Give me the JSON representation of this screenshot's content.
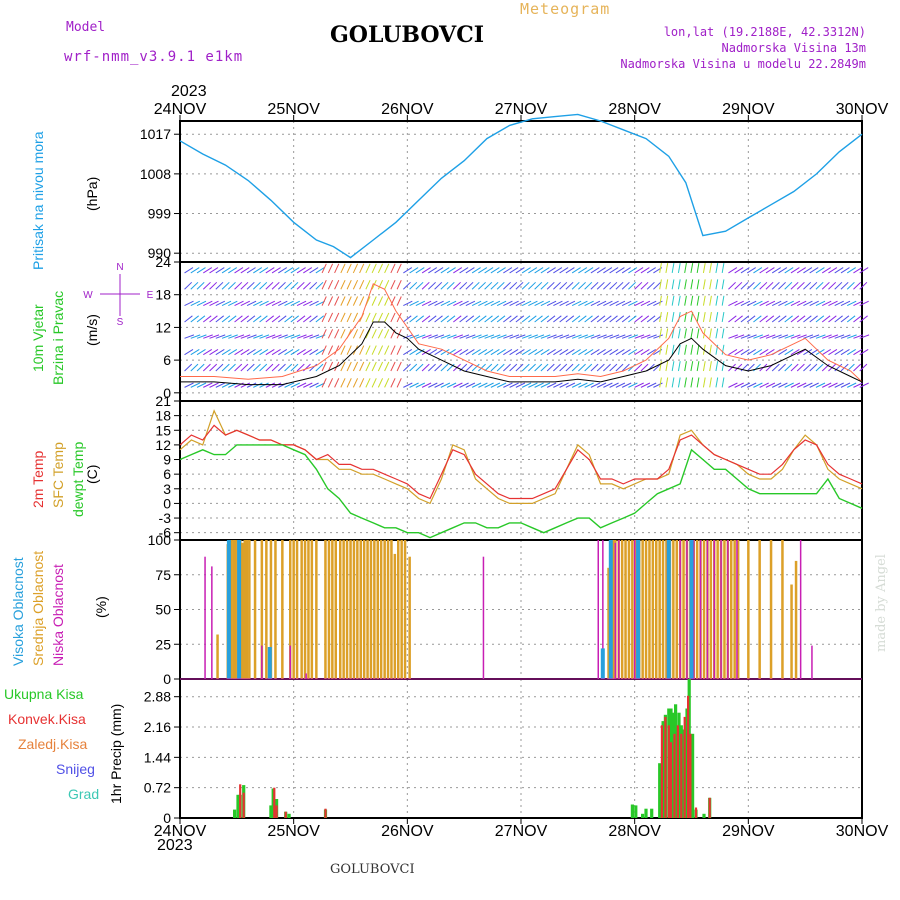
{
  "header": {
    "model_label": "Model",
    "model_name": "wrf-nmm_v3.9.1 e1km",
    "title": "GOLUBOVCI",
    "meteogram_label": "Meteogram",
    "lonlat": "lon,lat (19.2188E, 42.3312N)",
    "altitude": "Nadmorska Visina 13m",
    "model_altitude": "Nadmorska Visina u modelu 22.2849m",
    "year_top": "2023",
    "year_bottom": "2023",
    "footer_title": "GOLUBOVCI",
    "credit": "made by Angel"
  },
  "colors": {
    "pressure": "#1ea0e6",
    "temp2m": "#e63232",
    "sfc_temp": "#d2a028",
    "dewpt": "#28c828",
    "high_cloud": "#28a0dc",
    "mid_cloud": "#dca028",
    "low_cloud": "#c81eb4",
    "total_precip": "#28c828",
    "conv_precip": "#e63232",
    "frozen_precip": "#e6823c",
    "snow": "#5050e6",
    "hail": "#3cc8b4",
    "wind_speed": "#000000",
    "wind_gust": "#ff6a4a",
    "frame": "#000000",
    "grid": "#999999"
  },
  "chart_data": [
    {
      "type": "line",
      "panel": "pressure",
      "ylabel": [
        "Pritisak na nivou mora",
        "(hPa)"
      ],
      "yticks": [
        990,
        999,
        1008,
        1017
      ],
      "ylim": [
        988,
        1020
      ],
      "x_unit": "days from 24NOV 00UTC",
      "xticks": [
        "24NOV",
        "25NOV",
        "26NOV",
        "27NOV",
        "28NOV",
        "29NOV",
        "30NOV"
      ],
      "grid": true,
      "series": [
        {
          "x": [
            0,
            0.2,
            0.4,
            0.6,
            0.8,
            1.0,
            1.2,
            1.35,
            1.5,
            1.7,
            1.9,
            2.1,
            2.3,
            2.5,
            2.7,
            2.9,
            3.1,
            3.3,
            3.5,
            3.7,
            3.9,
            4.1,
            4.3,
            4.45,
            4.6,
            4.8,
            5.0,
            5.2,
            5.4,
            5.6,
            5.8,
            6.0
          ],
          "y": [
            1015.5,
            1012.5,
            1010,
            1006.5,
            1002,
            997,
            993,
            991.5,
            989,
            993,
            997,
            1002,
            1007,
            1011,
            1016,
            1019,
            1020.5,
            1021,
            1021.5,
            1020,
            1018,
            1016,
            1012,
            1006,
            994,
            995,
            998,
            1001,
            1004,
            1008,
            1013,
            1017
          ]
        }
      ]
    },
    {
      "type": "line",
      "panel": "wind",
      "ylabel": [
        "10m Vjetar",
        "Brzina i Pravac",
        "(m/s)"
      ],
      "yticks": [
        0,
        6,
        12,
        18,
        24
      ],
      "ylim": [
        -1.5,
        24
      ],
      "grid": true,
      "compass_legend": [
        "N",
        "E",
        "S",
        "W"
      ],
      "series": [
        {
          "name": "speed",
          "x": [
            0,
            0.3,
            0.6,
            0.9,
            1.2,
            1.4,
            1.6,
            1.7,
            1.8,
            1.9,
            2.0,
            2.1,
            2.3,
            2.5,
            2.7,
            2.9,
            3.1,
            3.3,
            3.5,
            3.7,
            3.9,
            4.1,
            4.3,
            4.4,
            4.5,
            4.6,
            4.8,
            5.0,
            5.2,
            5.4,
            5.5,
            5.7,
            5.9,
            6.0
          ],
          "y": [
            2,
            2,
            1.5,
            1.5,
            3,
            5,
            9,
            13,
            13,
            11,
            10,
            8,
            6,
            4,
            3,
            2,
            2,
            2,
            2.5,
            2,
            3,
            4,
            6,
            9,
            10,
            8,
            5,
            4,
            5,
            7,
            8,
            5,
            3,
            2
          ]
        },
        {
          "name": "gust",
          "x": [
            0,
            0.3,
            0.6,
            0.9,
            1.2,
            1.4,
            1.6,
            1.7,
            1.8,
            1.9,
            2.0,
            2.1,
            2.3,
            2.5,
            2.7,
            2.9,
            3.1,
            3.3,
            3.5,
            3.7,
            3.9,
            4.1,
            4.3,
            4.4,
            4.5,
            4.6,
            4.8,
            5.0,
            5.2,
            5.4,
            5.5,
            5.7,
            5.9,
            6.0
          ],
          "y": [
            3,
            3,
            2.5,
            3,
            5,
            8,
            14,
            20,
            19,
            15,
            12,
            9,
            8,
            6,
            4,
            3,
            3,
            3,
            3.5,
            3,
            4,
            6,
            10,
            14,
            15,
            11,
            7,
            6,
            7,
            9,
            10,
            6,
            4,
            2
          ]
        }
      ]
    },
    {
      "type": "line",
      "panel": "temperature",
      "ylabel": [
        "2m Temp",
        "SFC Temp",
        "dewpt Temp",
        "(C)"
      ],
      "yticks": [
        -6,
        -3,
        0,
        3,
        6,
        9,
        12,
        15,
        18,
        21
      ],
      "ylim": [
        -7.5,
        21
      ],
      "grid": true,
      "series": [
        {
          "name": "2m",
          "x": [
            0,
            0.1,
            0.2,
            0.3,
            0.4,
            0.5,
            0.6,
            0.7,
            0.8,
            0.9,
            1.0,
            1.1,
            1.2,
            1.3,
            1.4,
            1.5,
            1.6,
            1.7,
            1.8,
            1.9,
            2.0,
            2.1,
            2.2,
            2.3,
            2.4,
            2.5,
            2.6,
            2.7,
            2.8,
            2.9,
            3.0,
            3.1,
            3.2,
            3.3,
            3.4,
            3.5,
            3.6,
            3.7,
            3.8,
            3.9,
            4.0,
            4.1,
            4.2,
            4.3,
            4.4,
            4.5,
            4.6,
            4.7,
            4.8,
            4.9,
            5.0,
            5.1,
            5.2,
            5.3,
            5.4,
            5.5,
            5.6,
            5.7,
            5.8,
            5.9,
            6.0
          ],
          "y": [
            12,
            14,
            13,
            16,
            14,
            15,
            14,
            13,
            13,
            12,
            12,
            11,
            9,
            10,
            8,
            8,
            7,
            7,
            6,
            5,
            4,
            2,
            1,
            6,
            11,
            10,
            6,
            4,
            2,
            1,
            1,
            1,
            2,
            3,
            7,
            11,
            9,
            5,
            5,
            4,
            5,
            5,
            5,
            7,
            13,
            14,
            12,
            10,
            9,
            8,
            7,
            6,
            6,
            8,
            11,
            13,
            12,
            8,
            6,
            5,
            4
          ]
        },
        {
          "name": "sfc",
          "x": [
            0,
            0.1,
            0.2,
            0.3,
            0.4,
            0.5,
            0.6,
            0.7,
            0.8,
            0.9,
            1.0,
            1.1,
            1.2,
            1.3,
            1.4,
            1.5,
            1.6,
            1.7,
            1.8,
            1.9,
            2.0,
            2.1,
            2.2,
            2.3,
            2.4,
            2.5,
            2.6,
            2.7,
            2.8,
            2.9,
            3.0,
            3.1,
            3.2,
            3.3,
            3.4,
            3.5,
            3.6,
            3.7,
            3.8,
            3.9,
            4.0,
            4.1,
            4.2,
            4.3,
            4.4,
            4.5,
            4.6,
            4.7,
            4.8,
            4.9,
            5.0,
            5.1,
            5.2,
            5.3,
            5.4,
            5.5,
            5.6,
            5.7,
            5.8,
            5.9,
            6.0
          ],
          "y": [
            11,
            13,
            12,
            19,
            14,
            15,
            14,
            13,
            13,
            12,
            12,
            11,
            9,
            9,
            7,
            7,
            6,
            6,
            5,
            4,
            3,
            1,
            0,
            5,
            12,
            11,
            5,
            3,
            1,
            0,
            0,
            0,
            1,
            2,
            7,
            12,
            10,
            4,
            4,
            3,
            4,
            5,
            5,
            6,
            14,
            15,
            12,
            10,
            9,
            8,
            6,
            5,
            5,
            7,
            11,
            14,
            12,
            7,
            5,
            4,
            3
          ]
        },
        {
          "name": "dewpt",
          "x": [
            0,
            0.1,
            0.2,
            0.3,
            0.4,
            0.5,
            0.6,
            0.7,
            0.8,
            0.9,
            1.0,
            1.1,
            1.2,
            1.3,
            1.4,
            1.5,
            1.6,
            1.7,
            1.8,
            1.9,
            2.0,
            2.1,
            2.2,
            2.3,
            2.4,
            2.5,
            2.6,
            2.7,
            2.8,
            2.9,
            3.0,
            3.1,
            3.2,
            3.3,
            3.4,
            3.5,
            3.6,
            3.7,
            3.8,
            3.9,
            4.0,
            4.1,
            4.2,
            4.3,
            4.4,
            4.5,
            4.6,
            4.7,
            4.8,
            4.9,
            5.0,
            5.1,
            5.2,
            5.3,
            5.4,
            5.5,
            5.6,
            5.7,
            5.8,
            5.9,
            6.0
          ],
          "y": [
            9,
            10,
            11,
            10,
            10,
            12,
            12,
            12,
            12,
            12,
            11,
            10,
            7,
            3,
            1,
            -2,
            -3,
            -4,
            -5,
            -5,
            -6,
            -6,
            -7,
            -6,
            -5,
            -4,
            -4,
            -5,
            -5,
            -4,
            -4,
            -5,
            -6,
            -5,
            -4,
            -3,
            -3,
            -5,
            -4,
            -3,
            -2,
            0,
            2,
            3,
            4,
            11,
            9,
            7,
            7,
            5,
            3,
            2,
            2,
            2,
            2,
            2,
            2,
            5,
            1,
            0,
            -1
          ]
        }
      ]
    },
    {
      "type": "bar",
      "panel": "cloud",
      "ylabel": [
        "Visoka Oblacnost",
        "Srednja Oblacnost",
        "Niska Oblacnost",
        "(%)"
      ],
      "yticks": [
        0,
        25,
        50,
        75,
        100
      ],
      "ylim": [
        0,
        100
      ],
      "grid": true,
      "series": [
        {
          "name": "mid",
          "x": [
            0.33,
            0.42,
            0.45,
            0.47,
            0.49,
            0.51,
            0.53,
            0.55,
            0.57,
            0.59,
            0.61,
            0.66,
            0.72,
            0.76,
            0.8,
            0.84,
            0.9,
            0.97,
            1.0,
            1.03,
            1.07,
            1.1,
            1.13,
            1.16,
            1.2,
            1.28,
            1.31,
            1.34,
            1.37,
            1.41,
            1.44,
            1.47,
            1.5,
            1.53,
            1.56,
            1.59,
            1.62,
            1.65,
            1.68,
            1.71,
            1.74,
            1.77,
            1.8,
            1.83,
            1.86,
            1.89,
            1.92,
            1.95,
            1.98,
            2.02,
            3.77,
            3.79,
            3.81,
            3.83,
            3.86,
            3.89,
            3.92,
            3.95,
            3.98,
            4.01,
            4.04,
            4.07,
            4.1,
            4.13,
            4.16,
            4.19,
            4.22,
            4.25,
            4.28,
            4.31,
            4.34,
            4.37,
            4.4,
            4.43,
            4.46,
            4.49,
            4.52,
            4.55,
            4.58,
            4.61,
            4.64,
            4.67,
            4.7,
            4.73,
            4.76,
            4.79,
            4.82,
            4.85,
            4.88,
            4.91,
            5.0,
            5.1,
            5.2,
            5.3,
            5.38,
            5.42
          ],
          "y": [
            32,
            97,
            100,
            100,
            100,
            100,
            100,
            98,
            100,
            100,
            100,
            100,
            100,
            100,
            100,
            100,
            100,
            100,
            100,
            100,
            100,
            100,
            100,
            100,
            100,
            100,
            100,
            100,
            100,
            100,
            100,
            100,
            100,
            100,
            100,
            100,
            100,
            100,
            100,
            100,
            100,
            100,
            100,
            100,
            100,
            90,
            100,
            100,
            100,
            88,
            80,
            92,
            100,
            100,
            100,
            100,
            100,
            100,
            100,
            100,
            100,
            100,
            100,
            100,
            100,
            100,
            100,
            100,
            100,
            100,
            100,
            100,
            100,
            100,
            100,
            100,
            100,
            100,
            100,
            100,
            100,
            100,
            100,
            100,
            100,
            100,
            100,
            100,
            100,
            100,
            100,
            100,
            100,
            100,
            68,
            85
          ]
        },
        {
          "name": "low",
          "x": [
            0.22,
            0.28,
            0.43,
            0.72,
            0.97,
            1.11,
            2.67,
            3.68,
            3.72,
            3.83,
            3.86,
            4.0,
            4.29,
            4.4,
            4.46,
            4.52,
            4.58,
            4.64,
            4.7,
            4.76,
            4.82,
            4.9,
            5.46,
            5.56
          ],
          "y": [
            88,
            81,
            25,
            24,
            24,
            4,
            88,
            100,
            100,
            98,
            100,
            100,
            100,
            100,
            100,
            100,
            100,
            100,
            100,
            100,
            100,
            100,
            100,
            24
          ]
        },
        {
          "name": "high",
          "x": [
            0.43,
            0.52,
            0.79,
            3.72,
            3.79,
            4.03,
            4.3,
            4.5
          ],
          "y": [
            100,
            100,
            23,
            22,
            100,
            100,
            100,
            100
          ]
        }
      ]
    },
    {
      "type": "bar",
      "panel": "precip",
      "ylabel": [
        "1hr Precip (mm)"
      ],
      "legend": [
        "Ukupna Kisa",
        "Konvek.Kisa",
        "Zaledj.Kisa",
        "Snijeg",
        "Grad"
      ],
      "yticks": [
        0,
        0.72,
        1.44,
        2.16,
        2.88
      ],
      "ylim": [
        0,
        3.3
      ],
      "grid": true,
      "series": [
        {
          "name": "total",
          "x": [
            0.48,
            0.51,
            0.53,
            0.56,
            0.8,
            0.82,
            0.85,
            0.93,
            0.96,
            1.28,
            3.98,
            4.01,
            4.07,
            4.1,
            4.15,
            4.22,
            4.25,
            4.27,
            4.3,
            4.32,
            4.34,
            4.36,
            4.39,
            4.41,
            4.43,
            4.46,
            4.48,
            4.51,
            4.54,
            4.61,
            4.66
          ],
          "y": [
            0.2,
            0.55,
            0.55,
            0.78,
            0.3,
            0.7,
            0.45,
            0.15,
            0.1,
            0.2,
            0.32,
            0.3,
            0.1,
            0.22,
            0.22,
            1.3,
            2.3,
            2.45,
            2.6,
            2.6,
            2.5,
            2.7,
            2.5,
            2.2,
            2.1,
            2.6,
            3.3,
            2.0,
            0.2,
            0.1,
            0.48
          ]
        },
        {
          "name": "conv",
          "x": [
            0.53,
            0.56,
            0.83,
            0.85,
            0.93,
            1.28,
            4.24,
            4.27,
            4.3,
            4.32,
            4.35,
            4.38,
            4.41,
            4.44,
            4.47,
            4.49,
            4.54,
            4.66
          ],
          "y": [
            0.8,
            0.6,
            0.72,
            0.3,
            0.15,
            0.22,
            2.2,
            2.4,
            2.2,
            1.8,
            2.0,
            2.2,
            2.0,
            2.4,
            2.9,
            2.0,
            0.25,
            0.48
          ]
        }
      ]
    }
  ]
}
